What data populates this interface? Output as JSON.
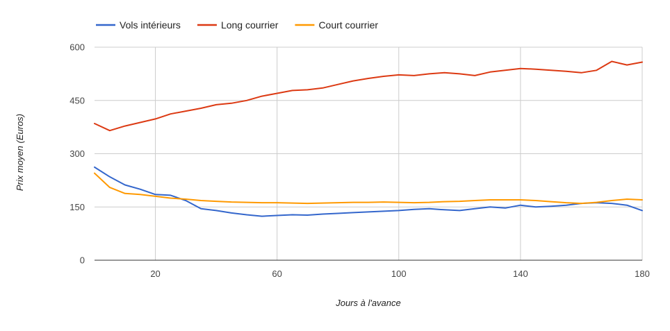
{
  "chart_data": {
    "type": "line",
    "title": "",
    "xlabel": "Jours à l'avance",
    "ylabel": "Prix moyen (Euros)",
    "xlim": [
      0,
      180
    ],
    "ylim": [
      0,
      600
    ],
    "x_ticks": [
      20,
      60,
      100,
      140,
      180
    ],
    "y_ticks": [
      0,
      150,
      300,
      450,
      600
    ],
    "grid": true,
    "legend_position": "top-left",
    "series": [
      {
        "name": "Vols intérieurs",
        "color": "#3366cc",
        "x": [
          0,
          5,
          10,
          15,
          20,
          25,
          30,
          35,
          40,
          45,
          50,
          55,
          60,
          65,
          70,
          75,
          80,
          85,
          90,
          95,
          100,
          105,
          110,
          115,
          120,
          125,
          130,
          135,
          140,
          145,
          150,
          155,
          160,
          165,
          170,
          175,
          180
        ],
        "values": [
          262,
          235,
          212,
          200,
          185,
          183,
          168,
          145,
          140,
          133,
          128,
          124,
          126,
          128,
          127,
          130,
          132,
          134,
          136,
          138,
          140,
          143,
          145,
          142,
          140,
          145,
          150,
          147,
          155,
          150,
          152,
          155,
          160,
          162,
          160,
          155,
          140
        ]
      },
      {
        "name": "Long courrier",
        "color": "#dc3912",
        "x": [
          0,
          5,
          10,
          15,
          20,
          25,
          30,
          35,
          40,
          45,
          50,
          55,
          60,
          65,
          70,
          75,
          80,
          85,
          90,
          95,
          100,
          105,
          110,
          115,
          120,
          125,
          130,
          135,
          140,
          145,
          150,
          155,
          160,
          165,
          170,
          175,
          180
        ],
        "values": [
          385,
          365,
          378,
          388,
          398,
          412,
          420,
          428,
          438,
          442,
          450,
          462,
          470,
          478,
          480,
          485,
          495,
          505,
          512,
          518,
          522,
          520,
          525,
          528,
          525,
          520,
          530,
          535,
          540,
          538,
          535,
          532,
          528,
          535,
          560,
          550,
          558
        ]
      },
      {
        "name": "Court courrier",
        "color": "#ff9900",
        "x": [
          0,
          5,
          10,
          15,
          20,
          25,
          30,
          35,
          40,
          45,
          50,
          55,
          60,
          65,
          70,
          75,
          80,
          85,
          90,
          95,
          100,
          105,
          110,
          115,
          120,
          125,
          130,
          135,
          140,
          145,
          150,
          155,
          160,
          165,
          170,
          175,
          180
        ],
        "values": [
          245,
          205,
          188,
          185,
          180,
          175,
          172,
          168,
          166,
          164,
          163,
          162,
          162,
          161,
          160,
          161,
          162,
          163,
          163,
          164,
          163,
          162,
          163,
          165,
          166,
          168,
          170,
          170,
          170,
          168,
          165,
          162,
          160,
          163,
          168,
          172,
          170
        ]
      }
    ]
  }
}
